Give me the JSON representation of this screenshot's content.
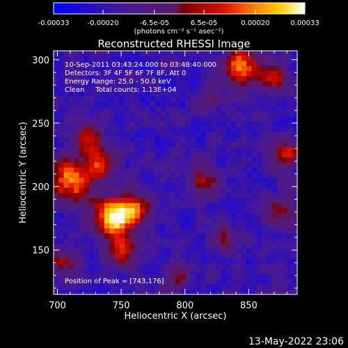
{
  "chart_data": {
    "type": "heatmap",
    "title": "Reconstructed RHESSI Image",
    "xlabel": "Heliocentric X (arcsec)",
    "ylabel": "Heliocentric Y (arcsec)",
    "xlim": [
      697,
      888
    ],
    "ylim": [
      115,
      307
    ],
    "x_ticks": [
      700,
      750,
      800,
      850
    ],
    "y_ticks": [
      150,
      200,
      250,
      300
    ],
    "colorbar": {
      "range": [
        -0.00033,
        0.00033
      ],
      "tick_values": [
        -0.00033,
        -0.0002,
        -6.5e-05,
        6.5e-05,
        0.0002,
        0.00033
      ],
      "tick_labels": [
        "-0.00033",
        "-0.00020",
        "-6.5e-05",
        "6.5e-05",
        "0.00020",
        "0.00033"
      ],
      "unit_label": "(photons cm⁻² s⁻¹ asec⁻²)",
      "colors": [
        "#0000ff",
        "#4b1a8c",
        "#5a1a6a",
        "#7a0000",
        "#e01000",
        "#ff8000",
        "#ffd000",
        "#ffffff"
      ]
    },
    "annotations": [
      "10-Sep-2011 03:43:24.000 to 03:48:40.000",
      "Detectors: 3F 4F 5F 6F 7F 8F, Att 0",
      "Energy Range: 25.0 - 50.0 keV",
      "Clean     Total counts: 1.13E+04",
      "Position of Peak = [743,176]"
    ],
    "peak": {
      "x": 743,
      "y": 176
    },
    "sources": [
      {
        "x": 743,
        "y": 176,
        "amp": 1.0,
        "sigma": 10
      },
      {
        "x": 760,
        "y": 182,
        "amp": 0.65,
        "sigma": 9
      },
      {
        "x": 710,
        "y": 205,
        "amp": 0.8,
        "sigma": 12
      },
      {
        "x": 735,
        "y": 220,
        "amp": 0.55,
        "sigma": 10
      },
      {
        "x": 750,
        "y": 150,
        "amp": 0.6,
        "sigma": 9
      },
      {
        "x": 725,
        "y": 240,
        "amp": 0.5,
        "sigma": 8
      },
      {
        "x": 845,
        "y": 295,
        "amp": 0.75,
        "sigma": 10
      },
      {
        "x": 870,
        "y": 285,
        "amp": 0.55,
        "sigma": 8
      },
      {
        "x": 880,
        "y": 225,
        "amp": 0.6,
        "sigma": 9
      },
      {
        "x": 875,
        "y": 180,
        "amp": 0.45,
        "sigma": 9
      },
      {
        "x": 815,
        "y": 205,
        "amp": 0.45,
        "sigma": 10
      },
      {
        "x": 830,
        "y": 160,
        "amp": 0.35,
        "sigma": 8
      },
      {
        "x": 795,
        "y": 130,
        "amp": 0.35,
        "sigma": 8
      },
      {
        "x": 705,
        "y": 140,
        "amp": 0.45,
        "sigma": 8
      },
      {
        "x": 820,
        "y": 270,
        "amp": 0.35,
        "sigma": 7
      }
    ]
  },
  "footer": {
    "timestamp": "13-May-2022 23:06"
  }
}
